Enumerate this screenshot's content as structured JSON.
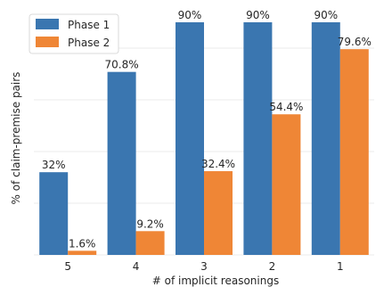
{
  "chart_data": {
    "type": "bar",
    "categories": [
      "5",
      "4",
      "3",
      "2",
      "1"
    ],
    "series": [
      {
        "name": "Phase 1",
        "color": "#3a76b0",
        "values": [
          32,
          70.8,
          90,
          90,
          90
        ],
        "labels": [
          "32%",
          "70.8%",
          "90%",
          "90%",
          "90%"
        ]
      },
      {
        "name": "Phase 2",
        "color": "#ef8636",
        "values": [
          1.6,
          9.2,
          32.4,
          54.4,
          79.6
        ],
        "labels": [
          "1.6%",
          "9.2%",
          "32.4%",
          "54.4%",
          "79.6%"
        ]
      }
    ],
    "xlabel": "# of implicit reasonings",
    "ylabel": "% of claim-premise pairs",
    "ylim": [
      0,
      90
    ],
    "y_ticks_visible": false,
    "grid": true,
    "legend_position": "top-left"
  }
}
